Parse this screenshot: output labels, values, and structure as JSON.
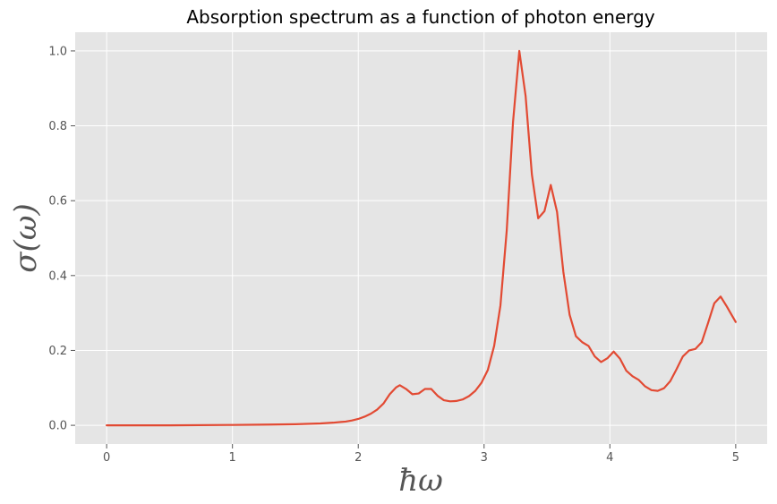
{
  "chart_data": {
    "type": "line",
    "title": "Absorption spectrum as a function of photon energy",
    "xlabel": "ħω",
    "ylabel": "σ(ω)",
    "xlim": [
      -0.25,
      5.25
    ],
    "ylim": [
      -0.05,
      1.05
    ],
    "xticks": [
      0,
      1,
      2,
      3,
      4,
      5
    ],
    "xtick_labels": [
      "0",
      "1",
      "2",
      "3",
      "4",
      "5"
    ],
    "yticks": [
      0.0,
      0.2,
      0.4,
      0.6,
      0.8,
      1.0
    ],
    "ytick_labels": [
      "0.0",
      "0.2",
      "0.4",
      "0.6",
      "0.8",
      "1.0"
    ],
    "grid": true,
    "background": "#e5e5e5",
    "series": [
      {
        "color": "#e24a33",
        "x": [
          0,
          0.5,
          1.0,
          1.3,
          1.5,
          1.7,
          1.8,
          1.9,
          1.95,
          2.0,
          2.05,
          2.1,
          2.15,
          2.2,
          2.25,
          2.3,
          2.33,
          2.38,
          2.43,
          2.48,
          2.53,
          2.58,
          2.63,
          2.68,
          2.73,
          2.78,
          2.83,
          2.88,
          2.93,
          2.98,
          3.03,
          3.08,
          3.13,
          3.18,
          3.23,
          3.28,
          3.33,
          3.38,
          3.43,
          3.48,
          3.53,
          3.58,
          3.63,
          3.68,
          3.73,
          3.78,
          3.83,
          3.88,
          3.93,
          3.98,
          4.03,
          4.08,
          4.13,
          4.18,
          4.23,
          4.28,
          4.33,
          4.38,
          4.43,
          4.48,
          4.53,
          4.58,
          4.63,
          4.68,
          4.73,
          4.78,
          4.83,
          4.88,
          4.93,
          5.0
        ],
        "y": [
          0.0,
          0.0,
          0.001,
          0.002,
          0.003,
          0.005,
          0.007,
          0.01,
          0.013,
          0.017,
          0.023,
          0.031,
          0.042,
          0.058,
          0.083,
          0.101,
          0.107,
          0.097,
          0.083,
          0.085,
          0.097,
          0.097,
          0.079,
          0.067,
          0.064,
          0.065,
          0.069,
          0.078,
          0.092,
          0.114,
          0.148,
          0.212,
          0.32,
          0.52,
          0.81,
          1.0,
          0.88,
          0.67,
          0.553,
          0.572,
          0.642,
          0.57,
          0.41,
          0.295,
          0.238,
          0.222,
          0.212,
          0.184,
          0.169,
          0.179,
          0.197,
          0.178,
          0.146,
          0.131,
          0.121,
          0.104,
          0.094,
          0.092,
          0.099,
          0.118,
          0.15,
          0.184,
          0.2,
          0.204,
          0.222,
          0.273,
          0.326,
          0.344,
          0.317,
          0.276
        ]
      }
    ]
  }
}
